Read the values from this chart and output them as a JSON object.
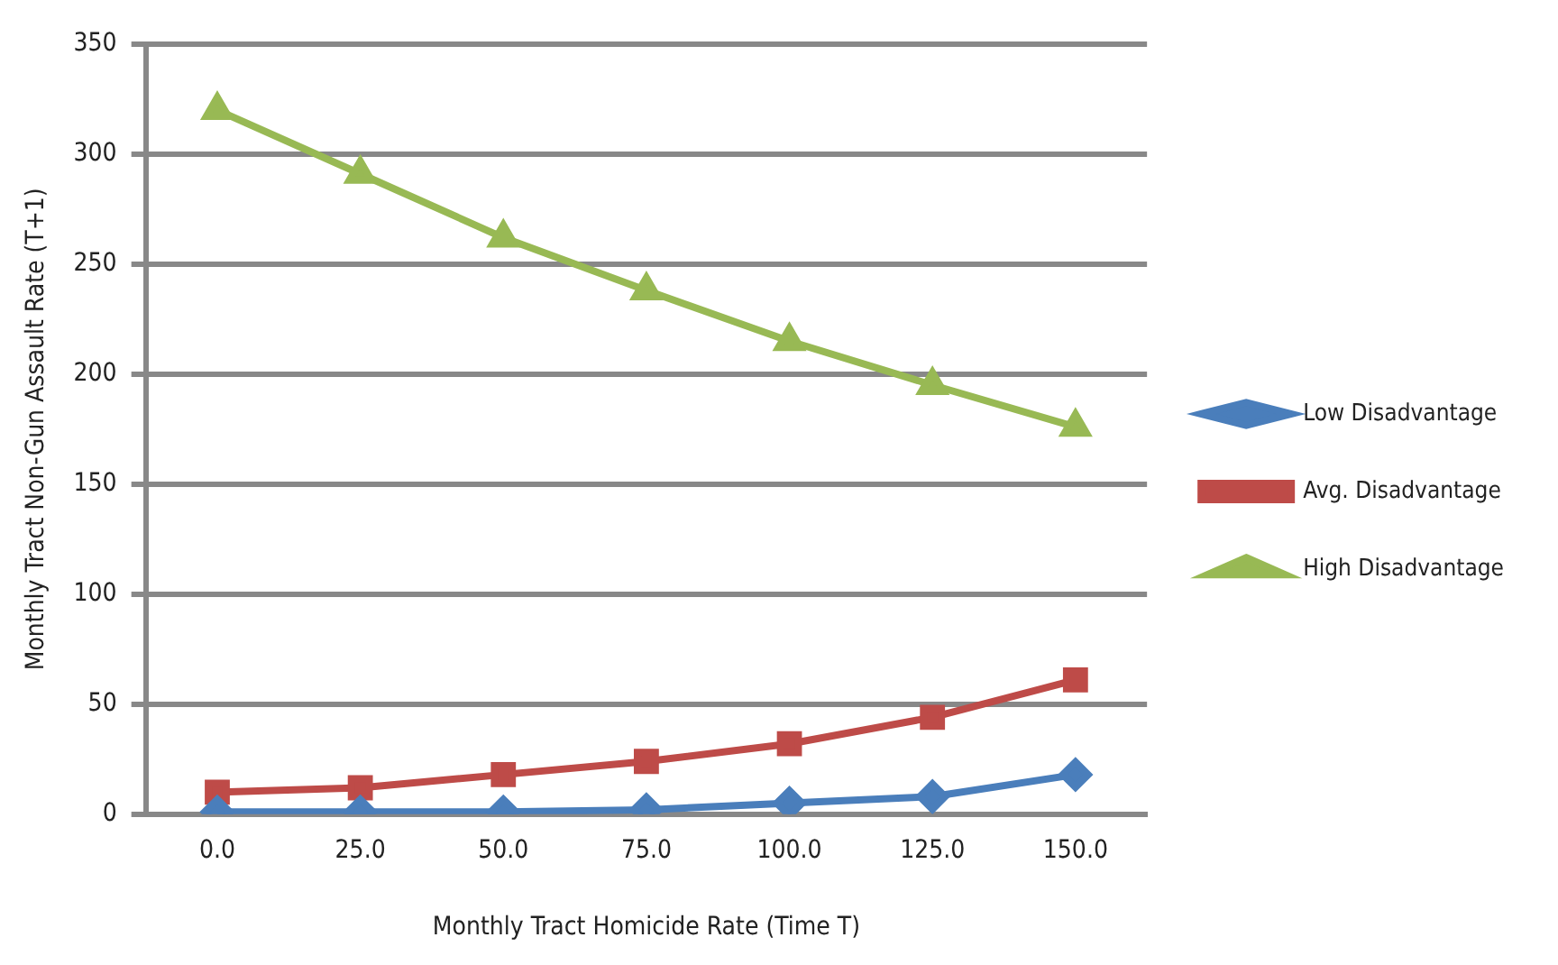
{
  "chart_data": {
    "type": "line",
    "xlabel": "Monthly Tract Homicide Rate (Time T)",
    "ylabel": "Monthly Tract Non-Gun Assault Rate (T+1)",
    "categories": [
      "0.0",
      "25.0",
      "50.0",
      "75.0",
      "100.0",
      "125.0",
      "150.0"
    ],
    "series": [
      {
        "name": "Low Disadvantage",
        "color": "#4a7ebb",
        "marker": "diamond",
        "values": [
          1,
          1,
          1,
          2,
          5,
          8,
          18
        ]
      },
      {
        "name": "Avg. Disadvantage",
        "color": "#be4b48",
        "marker": "square",
        "values": [
          10,
          12,
          18,
          24,
          32,
          44,
          61
        ]
      },
      {
        "name": "High Disadvantage",
        "color": "#98b954",
        "marker": "triangle",
        "values": [
          320,
          291,
          262,
          238,
          215,
          195,
          176
        ]
      }
    ],
    "ylim": [
      0,
      350
    ],
    "yticks": [
      0,
      50,
      100,
      150,
      200,
      250,
      300,
      350
    ],
    "grid": "y",
    "legend": "right"
  }
}
